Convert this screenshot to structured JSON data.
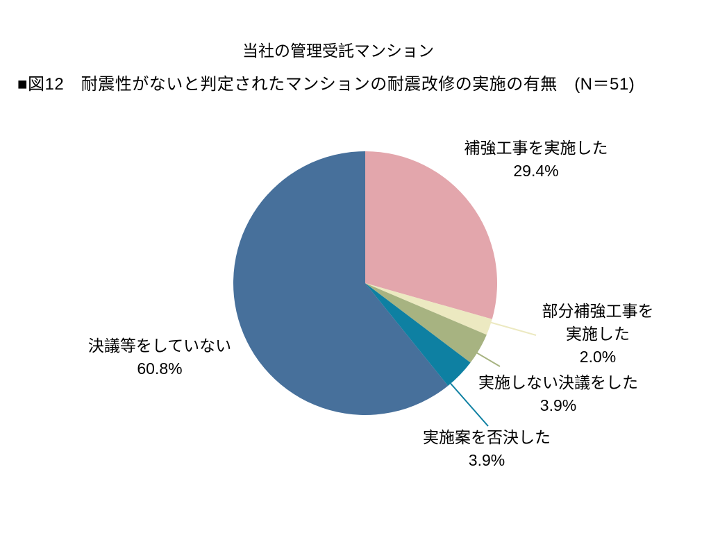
{
  "chart_data": {
    "type": "pie",
    "title": "当社の管理受託マンション",
    "caption": "■図12　耐震性がないと判定されたマンションの耐震改修の実施の有無　(N＝51)",
    "sample_size": 51,
    "start_angle_deg": 0,
    "direction": "clockwise",
    "background_color": "#ffffff",
    "text_color": "#000000",
    "legend_position": "none",
    "slices": [
      {
        "label": "補強工事を実施した",
        "value": 29.4,
        "percent_label": "29.4%",
        "color": "#e3a6ac",
        "label_lines": [
          "補強工事を実施した",
          "29.4%"
        ],
        "leader_line": false
      },
      {
        "label": "部分補強工事を実施した",
        "value": 2.0,
        "percent_label": "2.0%",
        "color": "#ece9c1",
        "label_lines": [
          "部分補強工事を",
          "実施した",
          "2.0%"
        ],
        "leader_line": true
      },
      {
        "label": "実施しない決議をした",
        "value": 3.9,
        "percent_label": "3.9%",
        "color": "#a7b381",
        "label_lines": [
          "実施しない決議をした",
          "3.9%"
        ],
        "leader_line": true
      },
      {
        "label": "実施案を否決した",
        "value": 3.9,
        "percent_label": "3.9%",
        "color": "#0e80a2",
        "label_lines": [
          "実施案を否決した",
          "3.9%"
        ],
        "leader_line": true
      },
      {
        "label": "決議等をしていない",
        "value": 60.8,
        "percent_label": "60.8%",
        "color": "#47709b",
        "label_lines": [
          "決議等をしていない",
          "60.8%"
        ],
        "leader_line": false
      }
    ]
  }
}
